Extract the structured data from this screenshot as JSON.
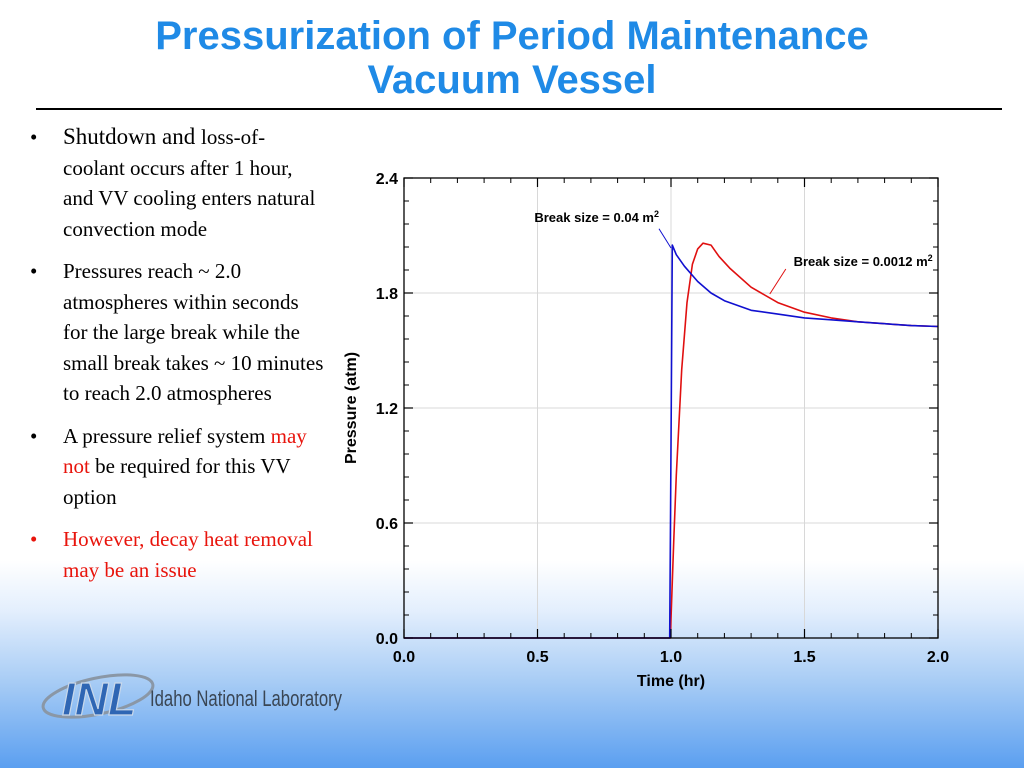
{
  "slide": {
    "title_line1": "Pressurization of Period Maintenance",
    "title_line2": "Vacuum Vessel"
  },
  "bullets": [
    {
      "lead": "Shutdown and ",
      "rest": "loss-of-coolant occurs after 1 hour, and VV cooling enters natural convection mode"
    },
    {
      "text": "Pressures reach ~ 2.0 atmospheres within seconds for the large break while the small break takes ~ 10 minutes to reach 2.0 atmospheres"
    },
    {
      "pre": "A pressure relief system ",
      "emph": "may not",
      "post": " be required for this VV option"
    },
    {
      "text": "However, decay heat removal may be an issue"
    }
  ],
  "logo": {
    "mark": "INL",
    "name": "Idaho National Laboratory"
  },
  "colors": {
    "title": "#1f8ae6",
    "emphasis": "#e8140c",
    "series_large": "#1010d0",
    "series_small": "#e01010"
  },
  "chart_data": {
    "type": "line",
    "xlabel": "Time (hr)",
    "ylabel": "Pressure (atm)",
    "xlim": [
      0,
      2
    ],
    "ylim": [
      0,
      2.4
    ],
    "xticks": [
      "0.0",
      "0.5",
      "1.0",
      "1.5",
      "2.0"
    ],
    "yticks": [
      "0.0",
      "0.6",
      "1.2",
      "1.8",
      "2.4"
    ],
    "grid": true,
    "series": [
      {
        "name": "Break size = 0.04 m",
        "sup": "2",
        "color": "#1010d0",
        "x": [
          0,
          0.995,
          1.0,
          1.005,
          1.02,
          1.05,
          1.1,
          1.15,
          1.2,
          1.3,
          1.4,
          1.5,
          1.6,
          1.7,
          1.8,
          1.9,
          2.0
        ],
        "y": [
          0,
          0,
          1.0,
          2.05,
          2.0,
          1.94,
          1.86,
          1.8,
          1.76,
          1.71,
          1.69,
          1.67,
          1.66,
          1.65,
          1.64,
          1.63,
          1.625
        ]
      },
      {
        "name": "Break size = 0.0012 m",
        "sup": "2",
        "color": "#e01010",
        "x": [
          0,
          0.998,
          1.0,
          1.01,
          1.02,
          1.04,
          1.06,
          1.08,
          1.1,
          1.12,
          1.15,
          1.18,
          1.22,
          1.3,
          1.4,
          1.5,
          1.6,
          1.7,
          1.8,
          1.9,
          2.0
        ],
        "y": [
          0,
          0,
          0.1,
          0.5,
          0.85,
          1.4,
          1.75,
          1.95,
          2.03,
          2.06,
          2.05,
          1.99,
          1.93,
          1.83,
          1.75,
          1.7,
          1.67,
          1.65,
          1.64,
          1.63,
          1.625
        ]
      }
    ]
  }
}
